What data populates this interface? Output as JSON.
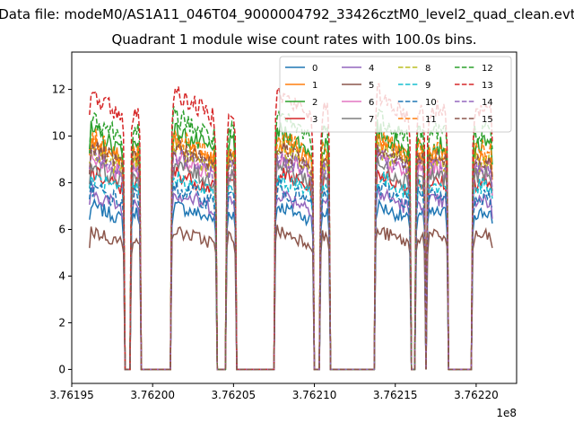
{
  "figure": {
    "suptitle": "Data file: modeM0/AS1A11_046T04_9000004792_33426cztM0_level2_quad_clean.evt",
    "offset_label": "1e8"
  },
  "chart_data": {
    "type": "line",
    "title": "Quadrant 1 module wise count rates with 100.0s bins.",
    "xlabel": "",
    "ylabel": "",
    "x_scale_factor": 100000000,
    "xlim": [
      376195000,
      376222500
    ],
    "ylim": [
      -0.6,
      13.6
    ],
    "xticks": [
      376195000,
      376200000,
      376205000,
      376210000,
      376215000,
      376220000
    ],
    "xtick_labels": [
      "3.76195",
      "3.76200",
      "3.76205",
      "3.76210",
      "3.76215",
      "3.76220"
    ],
    "yticks": [
      0,
      2,
      4,
      6,
      8,
      10,
      12
    ],
    "ytick_labels": [
      "0",
      "2",
      "4",
      "6",
      "8",
      "10",
      "12"
    ],
    "grid": false,
    "legend_position": "top-right",
    "legend_columns": 4,
    "bin_seconds": 100,
    "observation_windows": [
      [
        376196100,
        376198200
      ],
      [
        376198700,
        376199200
      ],
      [
        376201200,
        376203900
      ],
      [
        376204600,
        376205100
      ],
      [
        376207600,
        376209900
      ],
      [
        376210400,
        376210900
      ],
      [
        376213800,
        376215900
      ],
      [
        376216300,
        376216800
      ],
      [
        376217000,
        376218200
      ],
      [
        376219800,
        376221000
      ]
    ],
    "zero_segments": [
      [
        376198200,
        376198700
      ],
      [
        376199200,
        376201200
      ],
      [
        376203900,
        376204600
      ],
      [
        376205100,
        376207600
      ],
      [
        376209900,
        376210400
      ],
      [
        376210900,
        376213800
      ],
      [
        376215900,
        376216300
      ],
      [
        376218200,
        376219800
      ]
    ],
    "series": [
      {
        "name": "0",
        "color": "#1f77b4",
        "dash": "solid",
        "level": 6.7,
        "spread": 0.3
      },
      {
        "name": "1",
        "color": "#ff7f0e",
        "dash": "solid",
        "level": 9.2,
        "spread": 0.45
      },
      {
        "name": "2",
        "color": "#2ca02c",
        "dash": "solid",
        "level": 9.6,
        "spread": 0.45
      },
      {
        "name": "3",
        "color": "#d62728",
        "dash": "solid",
        "level": 8.0,
        "spread": 0.35
      },
      {
        "name": "4",
        "color": "#9467bd",
        "dash": "solid",
        "level": 7.2,
        "spread": 0.35
      },
      {
        "name": "5",
        "color": "#8c564b",
        "dash": "solid",
        "level": 5.7,
        "spread": 0.3
      },
      {
        "name": "6",
        "color": "#e377c2",
        "dash": "solid",
        "level": 8.6,
        "spread": 0.4
      },
      {
        "name": "7",
        "color": "#7f7f7f",
        "dash": "solid",
        "level": 8.3,
        "spread": 0.4
      },
      {
        "name": "8",
        "color": "#bcbd22",
        "dash": "dashed",
        "level": 8.9,
        "spread": 0.45
      },
      {
        "name": "9",
        "color": "#17becf",
        "dash": "dashed",
        "level": 7.8,
        "spread": 0.4
      },
      {
        "name": "10",
        "color": "#1f77b4",
        "dash": "dashed",
        "level": 7.4,
        "spread": 0.4
      },
      {
        "name": "11",
        "color": "#ff7f0e",
        "dash": "dashed",
        "level": 9.4,
        "spread": 0.45
      },
      {
        "name": "12",
        "color": "#2ca02c",
        "dash": "dashed",
        "level": 10.2,
        "spread": 0.45
      },
      {
        "name": "13",
        "color": "#d62728",
        "dash": "dashed",
        "level": 11.1,
        "spread": 0.45
      },
      {
        "name": "14",
        "color": "#9467bd",
        "dash": "dashed",
        "level": 8.7,
        "spread": 0.4
      },
      {
        "name": "15",
        "color": "#8c564b",
        "dash": "dashed",
        "level": 9.0,
        "spread": 0.4
      }
    ]
  }
}
